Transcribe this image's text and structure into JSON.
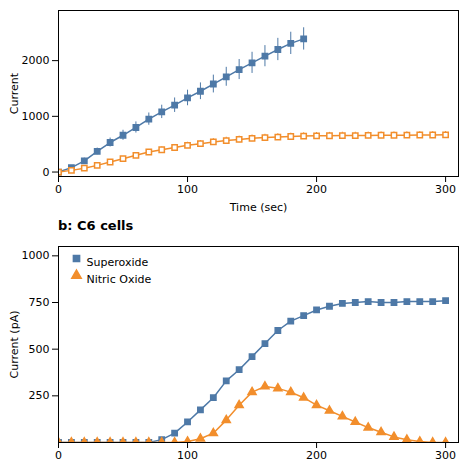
{
  "chart_data": [
    {
      "type": "line",
      "xlabel": "Time (sec)",
      "ylabel": "Current",
      "xlim": [
        0,
        310
      ],
      "ylim": [
        -80,
        2900
      ],
      "xticks": [
        0,
        100,
        200,
        300
      ],
      "yticks": [
        0,
        1000,
        2000
      ],
      "series": [
        {
          "marker": "square",
          "x": [
            0,
            10,
            20,
            30,
            40,
            50,
            60,
            70,
            80,
            90,
            100,
            110,
            120,
            130,
            140,
            150,
            160,
            170,
            180,
            190
          ],
          "values": [
            0,
            80,
            200,
            370,
            530,
            660,
            800,
            950,
            1080,
            1200,
            1330,
            1450,
            1580,
            1710,
            1840,
            1960,
            2080,
            2200,
            2310,
            2390
          ],
          "errors": [
            0,
            30,
            50,
            60,
            80,
            90,
            100,
            110,
            120,
            130,
            140,
            150,
            160,
            170,
            180,
            190,
            190,
            200,
            200,
            200
          ]
        },
        {
          "marker": "open_square",
          "x": [
            0,
            10,
            20,
            30,
            40,
            50,
            60,
            70,
            80,
            90,
            100,
            110,
            120,
            130,
            140,
            150,
            160,
            170,
            180,
            190,
            200,
            210,
            220,
            230,
            240,
            250,
            260,
            270,
            280,
            290,
            300
          ],
          "values": [
            0,
            30,
            70,
            120,
            180,
            240,
            300,
            360,
            400,
            440,
            480,
            510,
            540,
            565,
            585,
            605,
            618,
            628,
            638,
            645,
            650,
            652,
            655,
            655,
            658,
            660,
            660,
            662,
            665,
            665,
            668
          ],
          "errors": [
            0,
            15,
            20,
            25,
            30,
            35,
            40,
            45,
            50,
            55,
            55,
            55,
            60,
            60,
            60,
            60,
            60,
            60,
            60,
            60,
            60,
            60,
            60,
            60,
            60,
            60,
            60,
            60,
            60,
            60,
            60
          ]
        }
      ]
    },
    {
      "type": "line",
      "title": "b: C6 cells",
      "ylabel": "Current (pA)",
      "xlim": [
        0,
        310
      ],
      "ylim": [
        0,
        1050
      ],
      "xticks": [
        0,
        100,
        200,
        300
      ],
      "yticks": [
        250,
        500,
        750,
        1000
      ],
      "legend": "upper left",
      "series": [
        {
          "name": "Superoxide",
          "marker": "square",
          "x": [
            0,
            10,
            20,
            30,
            40,
            50,
            60,
            70,
            80,
            90,
            100,
            110,
            120,
            130,
            140,
            150,
            160,
            170,
            180,
            190,
            200,
            210,
            220,
            230,
            240,
            250,
            260,
            270,
            280,
            290,
            300
          ],
          "values": [
            0,
            0,
            0,
            0,
            0,
            0,
            0,
            0,
            15,
            50,
            110,
            175,
            240,
            330,
            390,
            460,
            530,
            600,
            650,
            680,
            710,
            730,
            745,
            750,
            755,
            750,
            750,
            755,
            755,
            755,
            760
          ]
        },
        {
          "name": "Nitric Oxide",
          "marker": "triangle",
          "x": [
            0,
            10,
            20,
            30,
            40,
            50,
            60,
            70,
            80,
            90,
            100,
            110,
            120,
            130,
            140,
            150,
            160,
            170,
            180,
            190,
            200,
            210,
            220,
            230,
            240,
            250,
            260,
            270,
            280,
            290,
            300
          ],
          "values": [
            0,
            0,
            0,
            0,
            0,
            0,
            0,
            0,
            0,
            0,
            5,
            20,
            50,
            120,
            200,
            270,
            300,
            290,
            270,
            240,
            200,
            170,
            140,
            110,
            80,
            55,
            30,
            15,
            5,
            0,
            0
          ]
        }
      ]
    }
  ]
}
